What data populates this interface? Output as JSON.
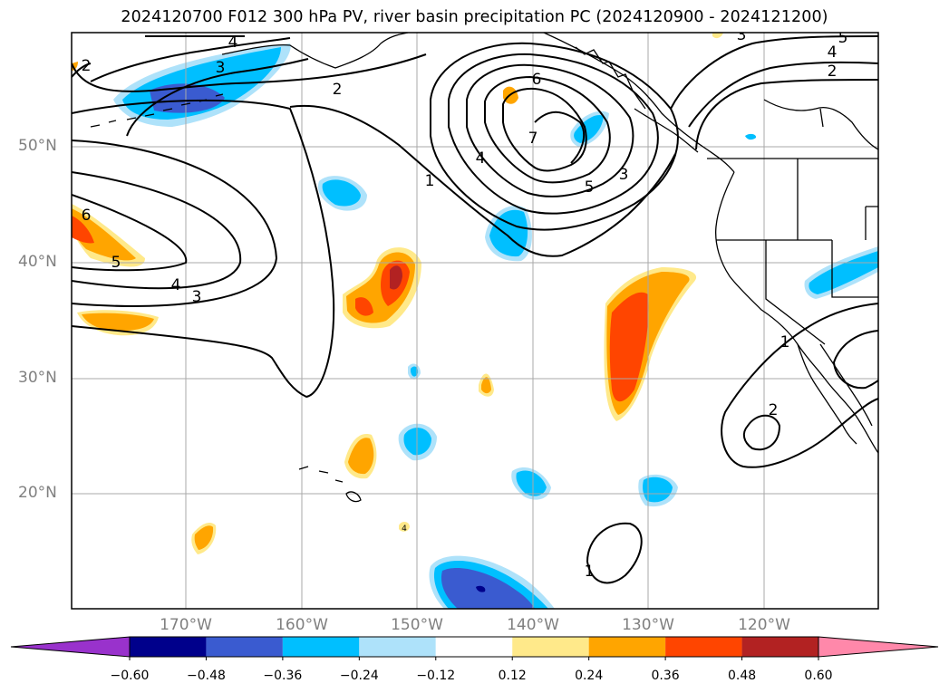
{
  "title": "2024120700 F012 300 hPa PV, river basin precipitation PC (2024120900 - 2024121200)",
  "lat_labels": [
    "50°N",
    "40°N",
    "30°N",
    "20°N"
  ],
  "lon_labels": [
    "170°W",
    "160°W",
    "150°W",
    "140°W",
    "130°W",
    "120°W"
  ],
  "contour_labels": [
    "4",
    "3",
    "2",
    "2",
    "1",
    "4",
    "6",
    "7",
    "5",
    "3",
    "3",
    "5",
    "4",
    "2",
    "6",
    "5",
    "4",
    "3",
    "1",
    "2",
    "1",
    "4"
  ],
  "colorbar": {
    "ticks": [
      "−0.60",
      "−0.48",
      "−0.36",
      "−0.24",
      "−0.12",
      "0.12",
      "0.24",
      "0.36",
      "0.48",
      "0.60"
    ],
    "colors": [
      "#9932cc",
      "#00008b",
      "#3a5bd0",
      "#00bfff",
      "#aee2fa",
      "#ffffff",
      "#ffe98a",
      "#ffa500",
      "#ff4500",
      "#b22222",
      "#ff88aa"
    ]
  }
}
